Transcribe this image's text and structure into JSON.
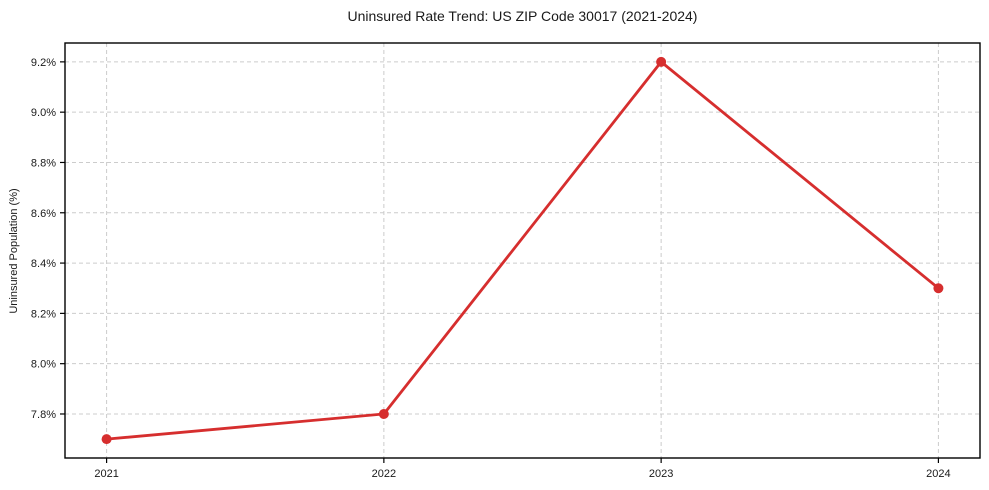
{
  "colors": {
    "line": "#d62e2e",
    "grid": "#cccccc",
    "axis": "#000000",
    "text": "#1a1a1a",
    "background": "#ffffff"
  },
  "chart_data": {
    "type": "line",
    "title": "Uninsured Rate Trend: US ZIP Code 30017 (2021-2024)",
    "xlabel": "",
    "ylabel": "Uninsured Population (%)",
    "x": [
      2021,
      2022,
      2023,
      2024
    ],
    "x_tick_labels": [
      "2021",
      "2022",
      "2023",
      "2024"
    ],
    "series": [
      {
        "name": "Uninsured Rate",
        "values": [
          7.7,
          7.8,
          9.2,
          8.3
        ]
      }
    ],
    "y_ticks": [
      7.8,
      8.0,
      8.2,
      8.4,
      8.6,
      8.8,
      9.0,
      9.2
    ],
    "y_tick_labels": [
      "7.8%",
      "8.0%",
      "8.2%",
      "8.4%",
      "8.6%",
      "8.8%",
      "9.0%",
      "9.2%"
    ],
    "xlim": [
      2020.85,
      2024.15
    ],
    "ylim": [
      7.625,
      9.275
    ],
    "grid": true,
    "legend": "none",
    "marker": "circle"
  }
}
